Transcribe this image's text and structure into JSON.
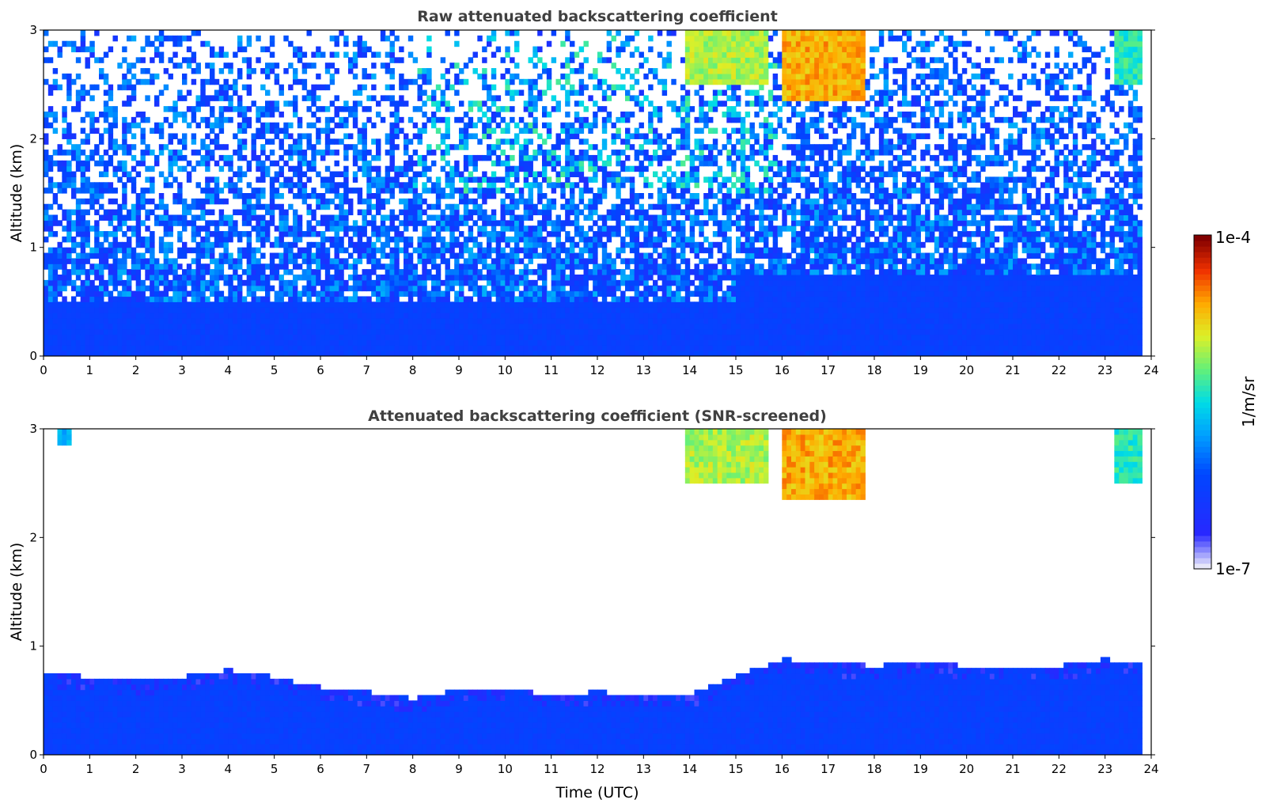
{
  "chart_data": [
    {
      "type": "heatmap",
      "title": "Raw attenuated backscattering coefficient",
      "xlabel": "",
      "ylabel": "Altitude (km)",
      "xlim": [
        0,
        24
      ],
      "ylim": [
        0,
        3
      ],
      "xticks": [
        "0",
        "1",
        "2",
        "3",
        "4",
        "5",
        "6",
        "7",
        "8",
        "9",
        "10",
        "11",
        "12",
        "13",
        "14",
        "15",
        "16",
        "17",
        "18",
        "19",
        "20",
        "21",
        "22",
        "23",
        "24"
      ],
      "yticks": [
        "0",
        "1",
        "2",
        "3"
      ],
      "data_end_hour": 23.8,
      "features": [
        {
          "name": "boundary layer (dense)",
          "x": [
            0,
            23.8
          ],
          "y_top_km": 0.5,
          "level": 0.2
        },
        {
          "name": "upper noise field",
          "x": [
            0,
            23.8
          ],
          "y": [
            0.5,
            3
          ],
          "level": 0.25
        },
        {
          "name": "cloud",
          "x": [
            13.9,
            15.7
          ],
          "y": [
            2.5,
            3.0
          ],
          "level": 0.72
        },
        {
          "name": "cloud",
          "x": [
            16.0,
            17.8
          ],
          "y": [
            2.35,
            3.0
          ],
          "level": 0.85
        },
        {
          "name": "cloud",
          "x": [
            23.2,
            23.8
          ],
          "y": [
            2.5,
            3.0
          ],
          "level": 0.6
        }
      ]
    },
    {
      "type": "heatmap",
      "title": "Attenuated backscattering coefficient (SNR-screened)",
      "xlabel": "Time (UTC)",
      "ylabel": "Altitude (km)",
      "xlim": [
        0,
        24
      ],
      "ylim": [
        0,
        3
      ],
      "xticks": [
        "0",
        "1",
        "2",
        "3",
        "4",
        "5",
        "6",
        "7",
        "8",
        "9",
        "10",
        "11",
        "12",
        "13",
        "14",
        "15",
        "16",
        "17",
        "18",
        "19",
        "20",
        "21",
        "22",
        "23",
        "24"
      ],
      "yticks": [
        "0",
        "1",
        "2",
        "3"
      ],
      "data_end_hour": 23.8,
      "boundary_layer_top_km": [
        [
          0,
          0.75
        ],
        [
          1,
          0.72
        ],
        [
          2,
          0.68
        ],
        [
          3,
          0.72
        ],
        [
          4,
          0.78
        ],
        [
          5,
          0.72
        ],
        [
          6,
          0.62
        ],
        [
          7,
          0.58
        ],
        [
          8,
          0.52
        ],
        [
          9,
          0.6
        ],
        [
          10,
          0.62
        ],
        [
          11,
          0.55
        ],
        [
          12,
          0.58
        ],
        [
          13,
          0.55
        ],
        [
          14,
          0.55
        ],
        [
          15,
          0.72
        ],
        [
          16,
          0.88
        ],
        [
          17,
          0.85
        ],
        [
          18,
          0.82
        ],
        [
          19,
          0.85
        ],
        [
          20,
          0.82
        ],
        [
          21,
          0.82
        ],
        [
          22,
          0.82
        ],
        [
          23,
          0.88
        ],
        [
          23.8,
          0.85
        ]
      ],
      "features": [
        {
          "name": "cloud",
          "x": [
            13.9,
            15.7
          ],
          "y": [
            2.5,
            3.0
          ],
          "level": 0.72
        },
        {
          "name": "cloud",
          "x": [
            16.0,
            17.8
          ],
          "y": [
            2.35,
            3.0
          ],
          "level": 0.85
        },
        {
          "name": "cloud",
          "x": [
            23.2,
            23.8
          ],
          "y": [
            2.5,
            3.0
          ],
          "level": 0.6
        },
        {
          "name": "cloud",
          "x": [
            0.3,
            0.6
          ],
          "y": [
            2.85,
            3.0
          ],
          "level": 0.5
        }
      ]
    }
  ],
  "colorbar": {
    "max_label": "1e-4",
    "min_label": "1e-7",
    "unit_label": "1/m/sr"
  }
}
